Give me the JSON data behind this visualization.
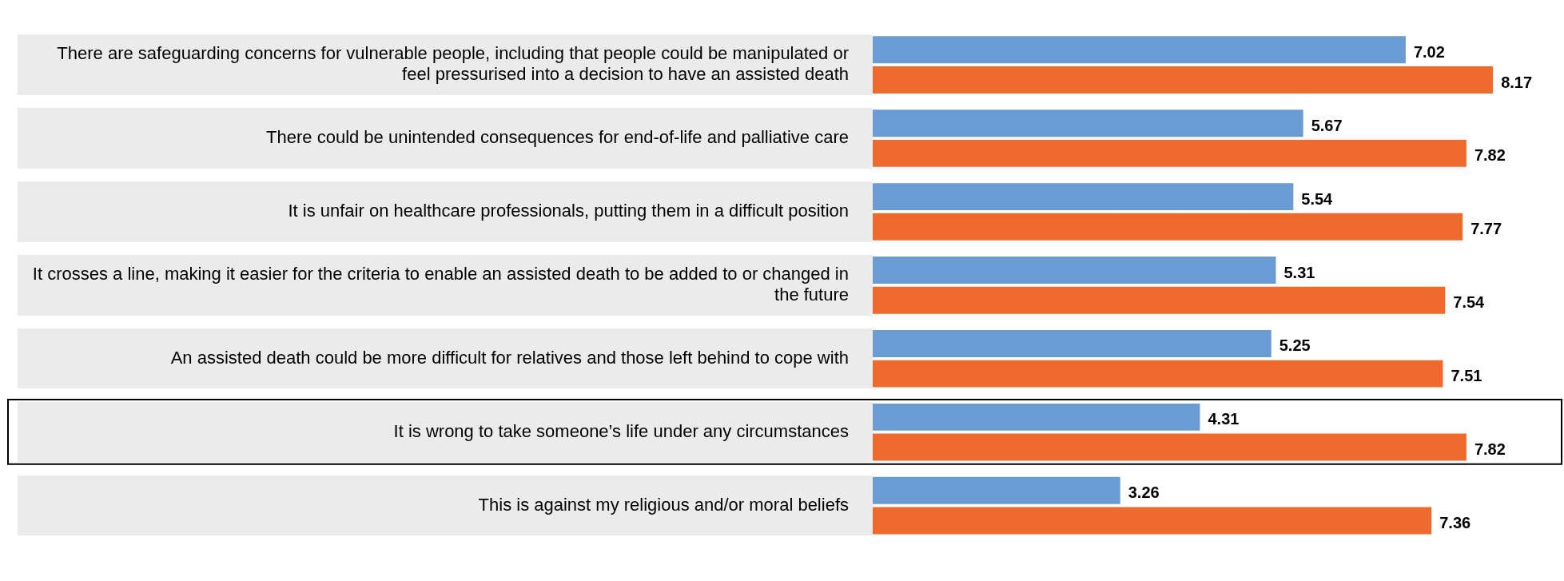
{
  "chart_data": {
    "type": "bar",
    "orientation": "horizontal",
    "categories": [
      "There are safeguarding concerns for vulnerable people, including that people could be manipulated or feel pressurised into a decision to have an assisted death",
      "There could be unintended consequences for end-of-life and palliative care",
      "It is unfair on healthcare professionals, putting them in a difficult position",
      "It crosses a line, making it easier for the criteria to enable an assisted death to be added to or changed in the future",
      "An assisted death could be more difficult for relatives and those left behind to cope with",
      "It is wrong to take someone’s life under any circumstances",
      "This is against my religious and/or moral beliefs"
    ],
    "series": [
      {
        "color": "#6a9bd3",
        "values": [
          7.02,
          5.67,
          5.54,
          5.31,
          5.25,
          4.31,
          3.26
        ]
      },
      {
        "color": "#ee6a2e",
        "values": [
          8.17,
          7.82,
          7.77,
          7.54,
          7.51,
          7.82,
          7.36
        ]
      }
    ],
    "data_labels": true,
    "legend": false,
    "tick_labels": "y"
  }
}
